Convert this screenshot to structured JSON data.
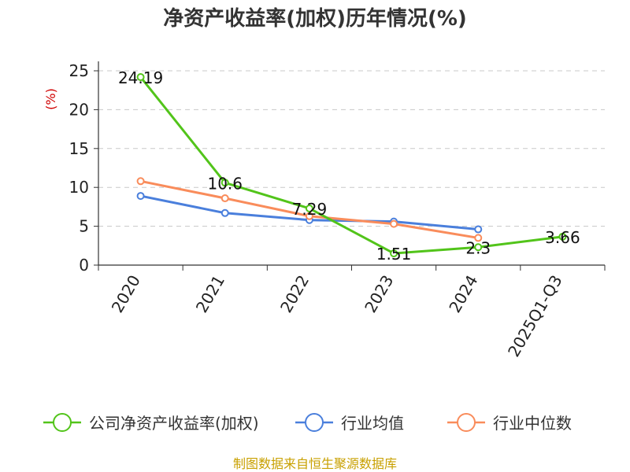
{
  "chart_data": {
    "type": "line",
    "title": "净资产收益率(加权)历年情况(%)",
    "ylabel": "(%)",
    "xlabel": "",
    "categories": [
      "2020",
      "2021",
      "2022",
      "2023",
      "2024",
      "2025Q1-Q3"
    ],
    "ylim": [
      0,
      25
    ],
    "yticks": [
      0,
      5,
      10,
      15,
      20,
      25
    ],
    "grid": true,
    "legend_position": "bottom",
    "series": [
      {
        "name": "公司净资产收益率(加权)",
        "color": "#52c41a",
        "values": [
          24.19,
          10.6,
          7.29,
          1.51,
          2.3,
          3.66
        ],
        "labels": [
          "24.19",
          "10.6",
          "7.29",
          "1.51",
          "2.3",
          "3.66"
        ]
      },
      {
        "name": "行业均值",
        "color": "#4a7fdc",
        "values": [
          8.9,
          6.7,
          5.8,
          5.6,
          4.6,
          null
        ]
      },
      {
        "name": "行业中位数",
        "color": "#f98c5b",
        "values": [
          10.8,
          8.6,
          6.3,
          5.3,
          3.5,
          null
        ]
      }
    ]
  },
  "source": "制图数据来自恒生聚源数据库"
}
